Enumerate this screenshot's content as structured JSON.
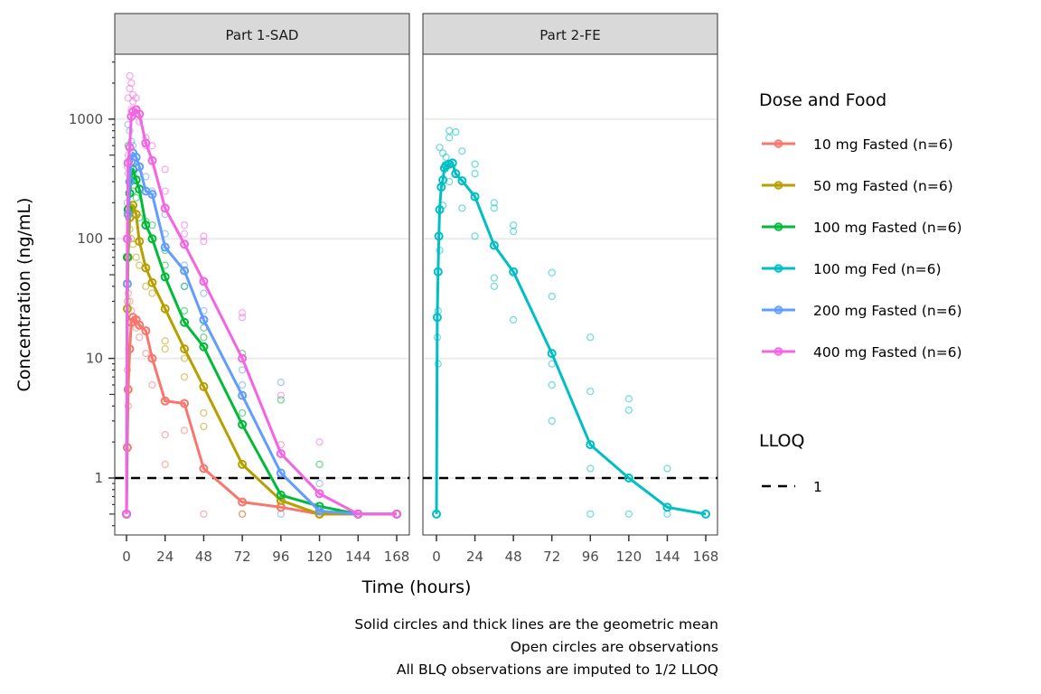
{
  "chart_data": {
    "type": "line",
    "yscale": "log10",
    "xlabel": "Time (hours)",
    "ylabel": "Concentration (ng/mL)",
    "ylim": [
      0.4,
      3000
    ],
    "xlim": [
      -8,
      176
    ],
    "x_ticks": [
      0,
      24,
      48,
      72,
      96,
      120,
      144,
      168
    ],
    "x_tick_labels": [
      "0",
      "24",
      "48",
      "72",
      "96",
      "120",
      "144",
      "168"
    ],
    "y_ticks": [
      1,
      10,
      100,
      1000
    ],
    "y_tick_labels": [
      "1",
      "10",
      "100",
      "1000"
    ],
    "grid": "horizontal major",
    "legend_position": "right",
    "legend": {
      "title": "Dose and Food",
      "entries": [
        {
          "label": "10 mg Fasted (n=6)",
          "color": "#F8766D"
        },
        {
          "label": "50 mg Fasted (n=6)",
          "color": "#B79F00"
        },
        {
          "label": "100 mg Fasted (n=6)",
          "color": "#00BA38"
        },
        {
          "label": "100 mg Fed (n=6)",
          "color": "#00BFC4"
        },
        {
          "label": "200 mg Fasted (n=6)",
          "color": "#619CFF"
        },
        {
          "label": "400 mg Fasted (n=6)",
          "color": "#F564E3"
        }
      ]
    },
    "lloq_legend": {
      "title": "LLOQ",
      "label": "1",
      "value": 1
    },
    "panels": [
      {
        "title": "Part 1-SAD",
        "series": [
          {
            "name": "10 mg Fasted (n=6)",
            "color": "#F8766D",
            "x": [
              0,
              0.5,
              1,
              2,
              3,
              4,
              6,
              8,
              12,
              16,
              24,
              36,
              48,
              72,
              96,
              120,
              144,
              168
            ],
            "y": [
              0.5,
              1.8,
              5.5,
              12,
              20,
              22,
              21,
              19,
              17,
              10,
              4.4,
              4.2,
              1.2,
              0.63,
              0.57,
              0.5,
              0.5,
              0.5
            ]
          },
          {
            "name": "50 mg Fasted (n=6)",
            "color": "#B79F00",
            "x": [
              0,
              0.5,
              1,
              2,
              3,
              4,
              6,
              8,
              12,
              16,
              24,
              36,
              48,
              72,
              96,
              120,
              144,
              168
            ],
            "y": [
              0.5,
              26,
              70,
              150,
              180,
              190,
              160,
              95,
              57,
              43,
              26,
              12,
              5.8,
              1.3,
              0.65,
              0.5,
              0.5,
              0.5
            ]
          },
          {
            "name": "100 mg Fasted (n=6)",
            "color": "#00BA38",
            "x": [
              0,
              0.5,
              1,
              2,
              3,
              4,
              6,
              8,
              12,
              16,
              24,
              36,
              48,
              72,
              96,
              120,
              144,
              168
            ],
            "y": [
              0.5,
              70,
              175,
              240,
              330,
              380,
              310,
              260,
              130,
              100,
              48,
              20,
              12.5,
              2.8,
              0.72,
              0.58,
              0.5,
              0.5
            ]
          },
          {
            "name": "200 mg Fasted (n=6)",
            "color": "#619CFF",
            "x": [
              0,
              0.5,
              1,
              2,
              3,
              4,
              6,
              8,
              12,
              16,
              24,
              36,
              48,
              72,
              96,
              120,
              144,
              168
            ],
            "y": [
              0.5,
              42,
              160,
              300,
              440,
              520,
              480,
              400,
              250,
              235,
              85,
              54,
              21,
              4.9,
              1.1,
              0.53,
              0.5,
              0.5
            ]
          },
          {
            "name": "400 mg Fasted (n=6)",
            "color": "#F564E3",
            "x": [
              0,
              0.5,
              1,
              2,
              3,
              4,
              6,
              8,
              12,
              16,
              24,
              36,
              48,
              72,
              96,
              120,
              144,
              168
            ],
            "y": [
              0.5,
              100,
              430,
              580,
              1050,
              1150,
              1200,
              1100,
              630,
              450,
              180,
              90,
              44,
              10,
              1.6,
              0.74,
              0.5,
              0.5
            ]
          }
        ],
        "observations": [
          {
            "color": "#F564E3",
            "points": [
              [
                1,
                1500
              ],
              [
                2,
                2300
              ],
              [
                2,
                1800
              ],
              [
                3,
                2000
              ],
              [
                4,
                1600
              ],
              [
                4,
                1400
              ],
              [
                3,
                1200
              ],
              [
                6,
                1500
              ],
              [
                8,
                950
              ],
              [
                12,
                700
              ],
              [
                12,
                600
              ],
              [
                16,
                600
              ],
              [
                24,
                380
              ],
              [
                24,
                250
              ],
              [
                36,
                130
              ],
              [
                36,
                110
              ],
              [
                48,
                105
              ],
              [
                48,
                95
              ],
              [
                72,
                24
              ],
              [
                72,
                22
              ],
              [
                96,
                1.9
              ],
              [
                96,
                4.9
              ],
              [
                120,
                2.0
              ],
              [
                0.5,
                400
              ],
              [
                1,
                500
              ],
              [
                2,
                300
              ]
            ]
          },
          {
            "color": "#619CFF",
            "points": [
              [
                1,
                900
              ],
              [
                2,
                800
              ],
              [
                3,
                650
              ],
              [
                4,
                600
              ],
              [
                6,
                400
              ],
              [
                8,
                350
              ],
              [
                12,
                330
              ],
              [
                16,
                250
              ],
              [
                24,
                160
              ],
              [
                24,
                110
              ],
              [
                36,
                60
              ],
              [
                36,
                40
              ],
              [
                48,
                35
              ],
              [
                48,
                25
              ],
              [
                72,
                8
              ],
              [
                72,
                6
              ],
              [
                96,
                6.3
              ],
              [
                96,
                0.5
              ],
              [
                120,
                0.9
              ],
              [
                0.5,
                200
              ],
              [
                1,
                350
              ]
            ]
          },
          {
            "color": "#00BA38",
            "points": [
              [
                1,
                600
              ],
              [
                2,
                450
              ],
              [
                3,
                300
              ],
              [
                4,
                250
              ],
              [
                6,
                220
              ],
              [
                8,
                150
              ],
              [
                12,
                140
              ],
              [
                16,
                130
              ],
              [
                24,
                80
              ],
              [
                24,
                60
              ],
              [
                36,
                40
              ],
              [
                36,
                25
              ],
              [
                48,
                18
              ],
              [
                48,
                15
              ],
              [
                72,
                11
              ],
              [
                72,
                3.5
              ],
              [
                96,
                4.5
              ],
              [
                120,
                1.3
              ],
              [
                0.5,
                100
              ],
              [
                1,
                180
              ]
            ]
          },
          {
            "color": "#B79F00",
            "points": [
              [
                1,
                180
              ],
              [
                2,
                120
              ],
              [
                3,
                100
              ],
              [
                4,
                90
              ],
              [
                6,
                70
              ],
              [
                8,
                60
              ],
              [
                12,
                40
              ],
              [
                16,
                35
              ],
              [
                24,
                14
              ],
              [
                24,
                12
              ],
              [
                36,
                10
              ],
              [
                36,
                7
              ],
              [
                48,
                3.5
              ],
              [
                48,
                2.7
              ],
              [
                72,
                0.5
              ],
              [
                96,
                0.6
              ],
              [
                120,
                0.5
              ],
              [
                0.5,
                30
              ]
            ]
          },
          {
            "color": "#F8766D",
            "points": [
              [
                1,
                35
              ],
              [
                2,
                30
              ],
              [
                3,
                25
              ],
              [
                4,
                20
              ],
              [
                6,
                18
              ],
              [
                8,
                15
              ],
              [
                12,
                11
              ],
              [
                16,
                6
              ],
              [
                24,
                2.3
              ],
              [
                24,
                1.3
              ],
              [
                36,
                2.5
              ],
              [
                48,
                0.5
              ],
              [
                72,
                0.5
              ],
              [
                0.5,
                8
              ],
              [
                1,
                4
              ]
            ]
          }
        ]
      },
      {
        "title": "Part 2-FE",
        "series": [
          {
            "name": "100 mg Fed (n=6)",
            "color": "#00BFC4",
            "x": [
              0,
              0.5,
              1,
              1.5,
              2,
              3,
              4,
              5,
              6,
              8,
              10,
              12,
              16,
              24,
              36,
              48,
              72,
              96,
              120,
              144,
              168
            ],
            "y": [
              0.5,
              22,
              53,
              105,
              175,
              270,
              310,
              390,
              410,
              420,
              430,
              350,
              305,
              225,
              88,
              53,
              11,
              1.9,
              1.0,
              0.57,
              0.5
            ]
          }
        ],
        "observations": [
          {
            "color": "#00BFC4",
            "points": [
              [
                8,
                800
              ],
              [
                8,
                700
              ],
              [
                12,
                780
              ],
              [
                2,
                580
              ],
              [
                4,
                520
              ],
              [
                6,
                480
              ],
              [
                16,
                540
              ],
              [
                24,
                420
              ],
              [
                24,
                350
              ],
              [
                36,
                200
              ],
              [
                36,
                180
              ],
              [
                48,
                130
              ],
              [
                48,
                115
              ],
              [
                72,
                52
              ],
              [
                72,
                33
              ],
              [
                96,
                15
              ],
              [
                96,
                5.3
              ],
              [
                120,
                4.6
              ],
              [
                120,
                3.7
              ],
              [
                144,
                1.2
              ],
              [
                24,
                105
              ],
              [
                36,
                47
              ],
              [
                36,
                40
              ],
              [
                48,
                21
              ],
              [
                72,
                9
              ],
              [
                72,
                6
              ],
              [
                72,
                3
              ],
              [
                96,
                1.2
              ],
              [
                96,
                0.5
              ],
              [
                120,
                0.5
              ],
              [
                144,
                0.5
              ],
              [
                1,
                25
              ],
              [
                1,
                9
              ],
              [
                0.5,
                15
              ],
              [
                2,
                80
              ],
              [
                4,
                190
              ],
              [
                8,
                300
              ],
              [
                16,
                180
              ]
            ]
          }
        ]
      }
    ],
    "reference_line": {
      "type": "hline",
      "y": 1,
      "style": "dashed",
      "color": "#000000"
    },
    "caption": [
      "Solid circles and thick lines are the geometric mean",
      "Open circles are observations",
      "All BLQ observations are imputed to 1/2 LLOQ"
    ]
  }
}
